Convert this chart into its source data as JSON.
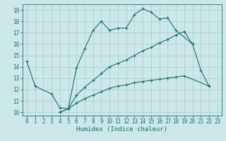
{
  "title": "",
  "xlabel": "Humidex (Indice chaleur)",
  "background_color": "#cce8e8",
  "grid_color": "#aacccc",
  "line_color": "#1a7070",
  "xlim": [
    -0.5,
    23.5
  ],
  "ylim": [
    9.7,
    19.5
  ],
  "xticks": [
    0,
    1,
    2,
    3,
    4,
    5,
    6,
    7,
    8,
    9,
    10,
    11,
    12,
    13,
    14,
    15,
    16,
    17,
    18,
    19,
    20,
    21,
    22,
    23
  ],
  "yticks": [
    10,
    11,
    12,
    13,
    14,
    15,
    16,
    17,
    18,
    19
  ],
  "series1_x": [
    0,
    1,
    3,
    4,
    5,
    6,
    7,
    8,
    9,
    10,
    11,
    12,
    13,
    14,
    15,
    16,
    17,
    18,
    20
  ],
  "series1_y": [
    14.5,
    12.3,
    11.6,
    10.4,
    10.3,
    13.9,
    15.6,
    17.2,
    18.0,
    17.2,
    17.4,
    17.4,
    18.6,
    19.1,
    18.8,
    18.2,
    18.3,
    17.2,
    16.0
  ],
  "series2_x": [
    4,
    5,
    6,
    7,
    8,
    9,
    10,
    11,
    12,
    13,
    14,
    15,
    16,
    17,
    18,
    19,
    20,
    21,
    22
  ],
  "series2_y": [
    10.0,
    10.3,
    11.5,
    12.2,
    12.8,
    13.4,
    14.0,
    14.3,
    14.6,
    15.0,
    15.4,
    15.7,
    16.1,
    16.4,
    16.8,
    17.1,
    16.0,
    13.7,
    12.3
  ],
  "series3_x": [
    4,
    5,
    6,
    7,
    8,
    9,
    10,
    11,
    12,
    13,
    14,
    15,
    16,
    17,
    18,
    19,
    22
  ],
  "series3_y": [
    10.0,
    10.3,
    10.8,
    11.2,
    11.5,
    11.8,
    12.1,
    12.3,
    12.4,
    12.6,
    12.7,
    12.8,
    12.9,
    13.0,
    13.1,
    13.2,
    12.3
  ]
}
